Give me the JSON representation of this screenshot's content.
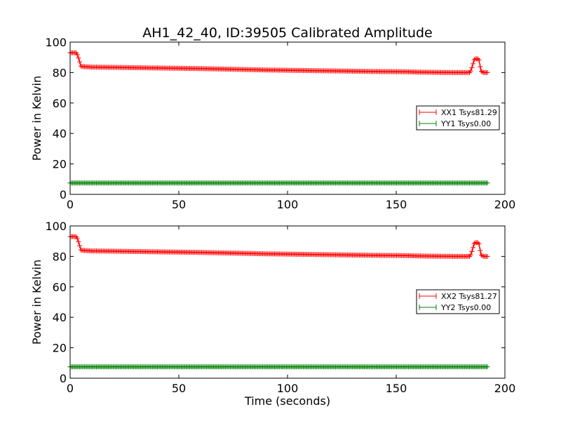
{
  "chart_data": [
    {
      "type": "line",
      "title": "AH1_42_40, ID:39505 Calibrated Amplitude",
      "xlabel": "",
      "ylabel": "Power in Kelvin",
      "xlim": [
        0,
        200
      ],
      "ylim": [
        0,
        100
      ],
      "xticks": [
        0,
        50,
        100,
        150,
        200
      ],
      "yticks": [
        0,
        20,
        40,
        60,
        80,
        100
      ],
      "grid": false,
      "legend_position": "right",
      "marker": "plus",
      "series": [
        {
          "name": "XX1 Tsys81.29",
          "color": "#ff0000",
          "x": [
            0,
            3,
            4,
            5,
            10,
            20,
            30,
            40,
            50,
            60,
            70,
            80,
            90,
            100,
            110,
            120,
            130,
            140,
            150,
            155,
            160,
            170,
            180,
            184,
            185,
            186,
            188,
            189,
            190,
            192
          ],
          "y": [
            93,
            93,
            89,
            84,
            83.6,
            83.4,
            83.2,
            83,
            82.8,
            82.6,
            82.3,
            82,
            81.7,
            81.5,
            81.3,
            81.1,
            80.9,
            80.7,
            80.6,
            80.5,
            80.3,
            80.1,
            80,
            80,
            84,
            89,
            89,
            81,
            80,
            80
          ]
        },
        {
          "name": "YY1 Tsys0.00",
          "color": "#008000",
          "x": [
            0,
            50,
            100,
            150,
            192
          ],
          "y": [
            7.5,
            7.5,
            7.5,
            7.5,
            7.5
          ]
        }
      ]
    },
    {
      "type": "line",
      "title": "",
      "xlabel": "Time (seconds)",
      "ylabel": "Power in Kelvin",
      "xlim": [
        0,
        200
      ],
      "ylim": [
        0,
        100
      ],
      "xticks": [
        0,
        50,
        100,
        150,
        200
      ],
      "yticks": [
        0,
        20,
        40,
        60,
        80,
        100
      ],
      "grid": false,
      "legend_position": "right",
      "marker": "plus",
      "series": [
        {
          "name": "XX2 Tsys81.27",
          "color": "#ff0000",
          "x": [
            0,
            3,
            4,
            5,
            10,
            20,
            30,
            40,
            50,
            60,
            70,
            80,
            90,
            100,
            110,
            120,
            130,
            140,
            150,
            155,
            160,
            170,
            180,
            184,
            185,
            186,
            188,
            189,
            190,
            192
          ],
          "y": [
            93,
            93,
            89,
            84,
            83.6,
            83.4,
            83.2,
            83,
            82.8,
            82.6,
            82.3,
            82,
            81.7,
            81.5,
            81.3,
            81.1,
            80.9,
            80.7,
            80.6,
            80.5,
            80.3,
            80.1,
            80,
            80,
            84,
            89,
            89,
            81,
            80,
            80
          ]
        },
        {
          "name": "YY2 Tsys0.00",
          "color": "#008000",
          "x": [
            0,
            50,
            100,
            150,
            192
          ],
          "y": [
            7.5,
            7.5,
            7.5,
            7.5,
            7.5
          ]
        }
      ]
    }
  ]
}
